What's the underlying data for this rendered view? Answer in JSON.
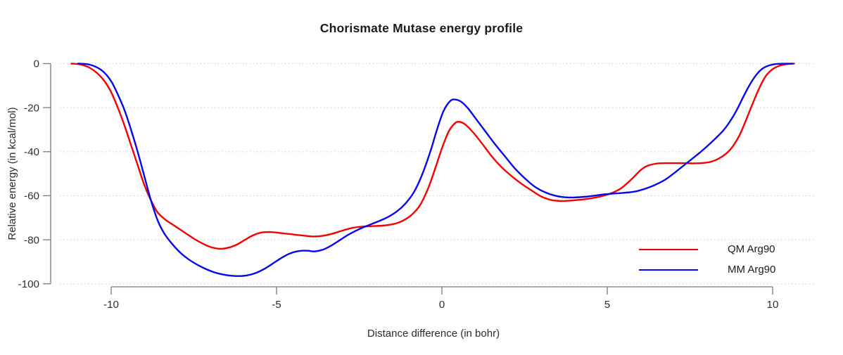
{
  "title": "Chorismate Mutase energy profile",
  "chart_data": {
    "type": "line",
    "title": "Chorismate Mutase energy profile",
    "xlabel": "Distance difference (in bohr)",
    "ylabel": "Relative energy (in kcal/mol)",
    "xlim": [
      -11.5,
      11.3
    ],
    "ylim": [
      -100,
      0
    ],
    "x_ticks": [
      -10,
      -5,
      0,
      5,
      10
    ],
    "y_ticks": [
      0,
      -20,
      -40,
      -60,
      -80,
      -100
    ],
    "grid": "horizontal-dotted",
    "legend_position": "lower-right",
    "series": [
      {
        "name": "QM Arg90",
        "color": "#f40000",
        "points": [
          [
            -11.2,
            0
          ],
          [
            -10.95,
            -0.3
          ],
          [
            -10.7,
            -1.5
          ],
          [
            -10.45,
            -4
          ],
          [
            -10.2,
            -8
          ],
          [
            -10,
            -13
          ],
          [
            -9.8,
            -20
          ],
          [
            -9.6,
            -28
          ],
          [
            -9.4,
            -37
          ],
          [
            -9.2,
            -46
          ],
          [
            -9,
            -55
          ],
          [
            -8.8,
            -62
          ],
          [
            -8.6,
            -67.5
          ],
          [
            -8.35,
            -71
          ],
          [
            -8.1,
            -73.5
          ],
          [
            -7.8,
            -76.5
          ],
          [
            -7.5,
            -79.5
          ],
          [
            -7.2,
            -82
          ],
          [
            -6.95,
            -83.5
          ],
          [
            -6.7,
            -84.1
          ],
          [
            -6.45,
            -83.6
          ],
          [
            -6.2,
            -82.2
          ],
          [
            -5.95,
            -80
          ],
          [
            -5.7,
            -77.9
          ],
          [
            -5.45,
            -76.7
          ],
          [
            -5.2,
            -76.5
          ],
          [
            -4.9,
            -76.9
          ],
          [
            -4.55,
            -77.5
          ],
          [
            -4.2,
            -78.1
          ],
          [
            -3.9,
            -78.5
          ],
          [
            -3.6,
            -78.2
          ],
          [
            -3.3,
            -77.2
          ],
          [
            -3,
            -75.8
          ],
          [
            -2.7,
            -74.6
          ],
          [
            -2.4,
            -74
          ],
          [
            -2.1,
            -73.8
          ],
          [
            -1.8,
            -73.6
          ],
          [
            -1.5,
            -73
          ],
          [
            -1.2,
            -71.5
          ],
          [
            -0.9,
            -68.5
          ],
          [
            -0.65,
            -64
          ],
          [
            -0.4,
            -56
          ],
          [
            -0.2,
            -47.5
          ],
          [
            0,
            -38.5
          ],
          [
            0.2,
            -31
          ],
          [
            0.4,
            -27
          ],
          [
            0.55,
            -26.5
          ],
          [
            0.7,
            -27.6
          ],
          [
            0.9,
            -30.5
          ],
          [
            1.2,
            -36
          ],
          [
            1.5,
            -42
          ],
          [
            1.8,
            -47
          ],
          [
            2.1,
            -51
          ],
          [
            2.4,
            -54.5
          ],
          [
            2.7,
            -57.5
          ],
          [
            3,
            -60.3
          ],
          [
            3.3,
            -61.9
          ],
          [
            3.6,
            -62.4
          ],
          [
            3.9,
            -62.2
          ],
          [
            4.2,
            -61.8
          ],
          [
            4.5,
            -61.2
          ],
          [
            4.8,
            -60.3
          ],
          [
            5.1,
            -59
          ],
          [
            5.4,
            -56.8
          ],
          [
            5.7,
            -53
          ],
          [
            6,
            -48.5
          ],
          [
            6.2,
            -46.5
          ],
          [
            6.45,
            -45.5
          ],
          [
            6.7,
            -45.2
          ],
          [
            7,
            -45.2
          ],
          [
            7.3,
            -45.2
          ],
          [
            7.6,
            -45.3
          ],
          [
            7.9,
            -45.1
          ],
          [
            8.1,
            -44.7
          ],
          [
            8.35,
            -43.3
          ],
          [
            8.6,
            -40.8
          ],
          [
            8.8,
            -37.5
          ],
          [
            9,
            -32.5
          ],
          [
            9.2,
            -25.5
          ],
          [
            9.4,
            -18
          ],
          [
            9.6,
            -11
          ],
          [
            9.8,
            -5.5
          ],
          [
            10,
            -2.5
          ],
          [
            10.2,
            -1
          ],
          [
            10.4,
            -0.3
          ],
          [
            10.65,
            0
          ]
        ]
      },
      {
        "name": "MM Arg90",
        "color": "#0606ef",
        "points": [
          [
            -11,
            0
          ],
          [
            -10.75,
            -0.2
          ],
          [
            -10.5,
            -1.2
          ],
          [
            -10.25,
            -3.5
          ],
          [
            -10,
            -8
          ],
          [
            -9.8,
            -14
          ],
          [
            -9.6,
            -21
          ],
          [
            -9.4,
            -30
          ],
          [
            -9.2,
            -40
          ],
          [
            -9,
            -51
          ],
          [
            -8.8,
            -62
          ],
          [
            -8.6,
            -71
          ],
          [
            -8.4,
            -77
          ],
          [
            -8.15,
            -82
          ],
          [
            -7.9,
            -86
          ],
          [
            -7.65,
            -89
          ],
          [
            -7.4,
            -91.3
          ],
          [
            -7.15,
            -93.2
          ],
          [
            -6.9,
            -94.7
          ],
          [
            -6.65,
            -95.7
          ],
          [
            -6.4,
            -96.3
          ],
          [
            -6.15,
            -96.5
          ],
          [
            -5.9,
            -96.2
          ],
          [
            -5.65,
            -95.2
          ],
          [
            -5.4,
            -93.5
          ],
          [
            -5.15,
            -91.2
          ],
          [
            -4.9,
            -88.7
          ],
          [
            -4.65,
            -86.6
          ],
          [
            -4.45,
            -85.5
          ],
          [
            -4.25,
            -85
          ],
          [
            -4.05,
            -85
          ],
          [
            -3.85,
            -85.3
          ],
          [
            -3.6,
            -84.5
          ],
          [
            -3.35,
            -82.7
          ],
          [
            -3.1,
            -80.3
          ],
          [
            -2.85,
            -77.9
          ],
          [
            -2.6,
            -75.9
          ],
          [
            -2.35,
            -74.2
          ],
          [
            -2.1,
            -72.7
          ],
          [
            -1.85,
            -71.2
          ],
          [
            -1.6,
            -69.4
          ],
          [
            -1.35,
            -67
          ],
          [
            -1.1,
            -63.5
          ],
          [
            -0.85,
            -58.5
          ],
          [
            -0.6,
            -50.5
          ],
          [
            -0.35,
            -40
          ],
          [
            -0.15,
            -30
          ],
          [
            0.05,
            -21.5
          ],
          [
            0.25,
            -17
          ],
          [
            0.4,
            -16.3
          ],
          [
            0.6,
            -17.5
          ],
          [
            0.8,
            -20.5
          ],
          [
            1,
            -24.5
          ],
          [
            1.3,
            -30.5
          ],
          [
            1.6,
            -36.5
          ],
          [
            1.9,
            -42
          ],
          [
            2.2,
            -47.5
          ],
          [
            2.5,
            -52
          ],
          [
            2.8,
            -55.8
          ],
          [
            3.1,
            -58.3
          ],
          [
            3.4,
            -59.9
          ],
          [
            3.7,
            -60.7
          ],
          [
            4,
            -60.8
          ],
          [
            4.3,
            -60.5
          ],
          [
            4.6,
            -60
          ],
          [
            4.9,
            -59.4
          ],
          [
            5.2,
            -59
          ],
          [
            5.5,
            -58.7
          ],
          [
            5.8,
            -58.2
          ],
          [
            6,
            -57.5
          ],
          [
            6.25,
            -56.3
          ],
          [
            6.5,
            -54.7
          ],
          [
            6.75,
            -52.7
          ],
          [
            7,
            -50
          ],
          [
            7.25,
            -47
          ],
          [
            7.5,
            -44
          ],
          [
            7.75,
            -41
          ],
          [
            8,
            -37.8
          ],
          [
            8.25,
            -34.3
          ],
          [
            8.5,
            -30.5
          ],
          [
            8.7,
            -26.5
          ],
          [
            8.9,
            -21.5
          ],
          [
            9.1,
            -15.5
          ],
          [
            9.3,
            -9.8
          ],
          [
            9.5,
            -5.2
          ],
          [
            9.7,
            -2.2
          ],
          [
            9.9,
            -0.8
          ],
          [
            10.15,
            -0.1
          ],
          [
            10.6,
            0
          ]
        ]
      }
    ],
    "style_colors": {
      "axis": "#7a7a7a",
      "gridline": "#cdcdcd",
      "tick_label": "#2e2e2e"
    }
  }
}
